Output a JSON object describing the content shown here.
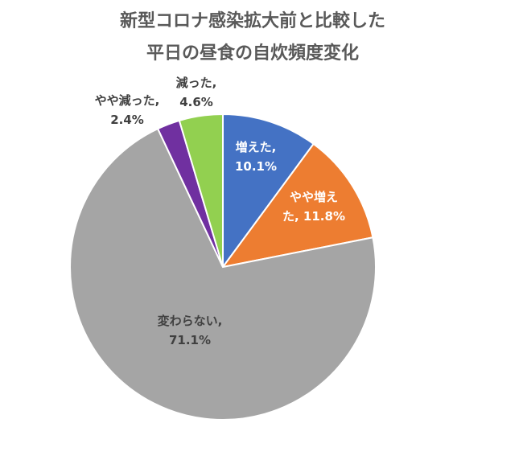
{
  "chart_data": {
    "type": "pie",
    "title": [
      "新型コロナ感染拡大前と比較した",
      "平日の昼食の自炊頻度変化"
    ],
    "slices": [
      {
        "label_lines": [
          "増えた,",
          "10.1%"
        ],
        "value": 10.1,
        "color": "#4472c4",
        "label_color": "light"
      },
      {
        "label_lines": [
          "やや増え",
          "た, 11.8%"
        ],
        "value": 11.8,
        "color": "#ed7d31",
        "label_color": "light"
      },
      {
        "label_lines": [
          "変わらない,",
          "71.1%"
        ],
        "value": 71.1,
        "color": "#a5a5a5",
        "label_color": "dark"
      },
      {
        "label_lines": [
          "やや減った,",
          "2.4%"
        ],
        "value": 2.4,
        "color": "#7030a0",
        "label_color": "dark"
      },
      {
        "label_lines": [
          "減った,",
          "4.6%"
        ],
        "value": 4.6,
        "color": "#92d050",
        "label_color": "dark"
      }
    ],
    "start": "12 o'clock",
    "direction": "clockwise",
    "legend": "none"
  }
}
